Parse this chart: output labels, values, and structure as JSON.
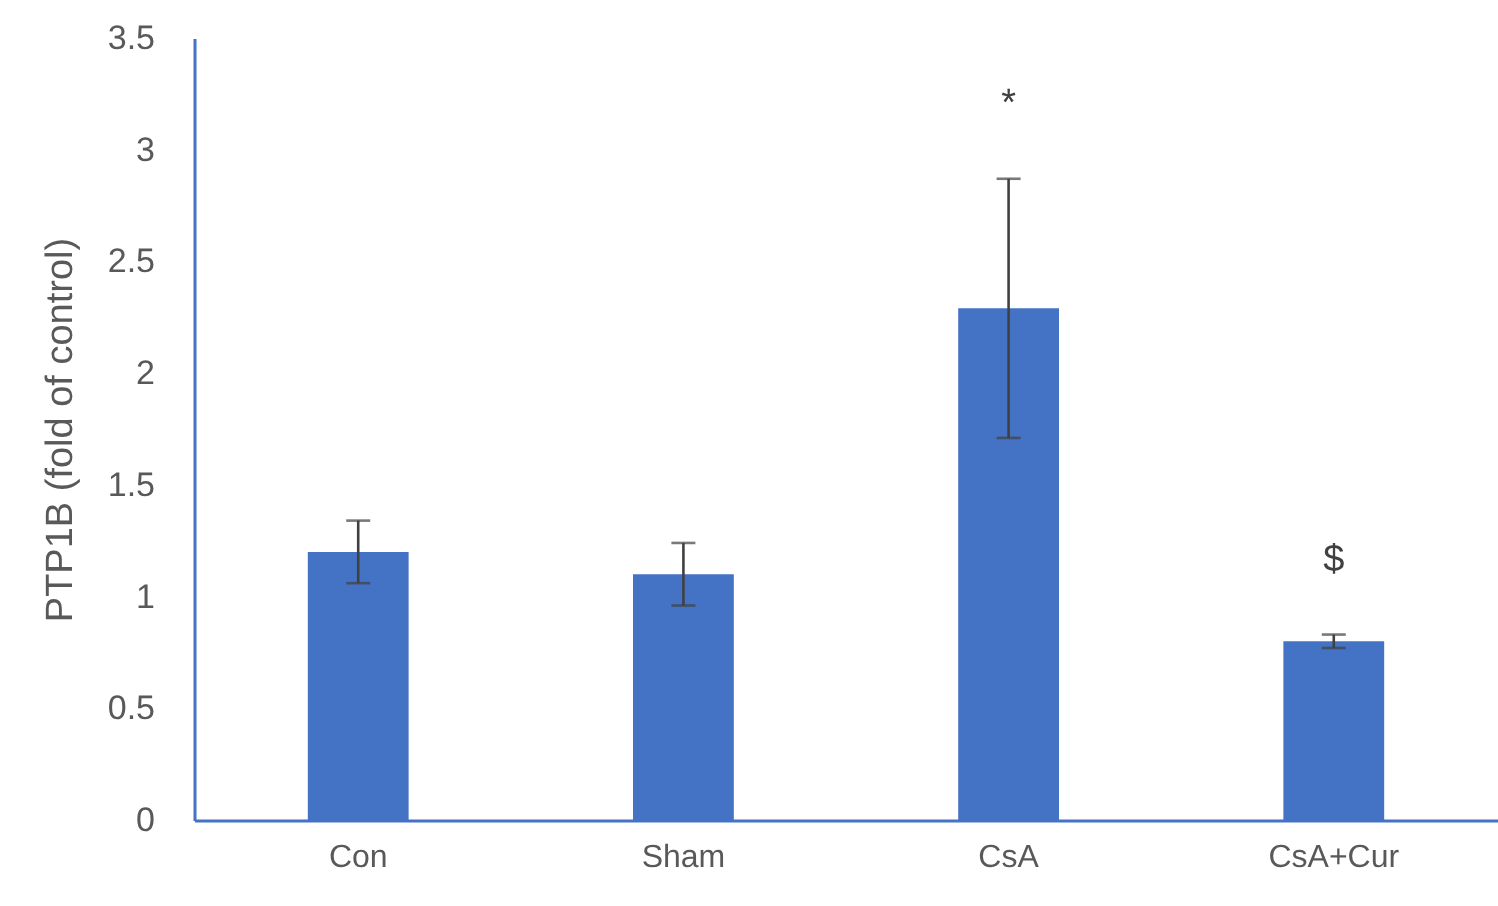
{
  "chart_data": {
    "type": "bar",
    "ylabel": "PTP1B (fold of control)",
    "categories": [
      "Con",
      "Sham",
      "CsA",
      "CsA+Cur"
    ],
    "values": [
      1.2,
      1.1,
      2.29,
      0.8
    ],
    "errors": [
      0.14,
      0.14,
      0.58,
      0.03
    ],
    "color": "#4472c4",
    "ylim": [
      0,
      3.5
    ],
    "yticks": [
      0,
      0.5,
      1,
      1.5,
      2,
      2.5,
      3,
      3.5
    ],
    "grid": false,
    "annotations": [
      "*",
      "$"
    ]
  }
}
